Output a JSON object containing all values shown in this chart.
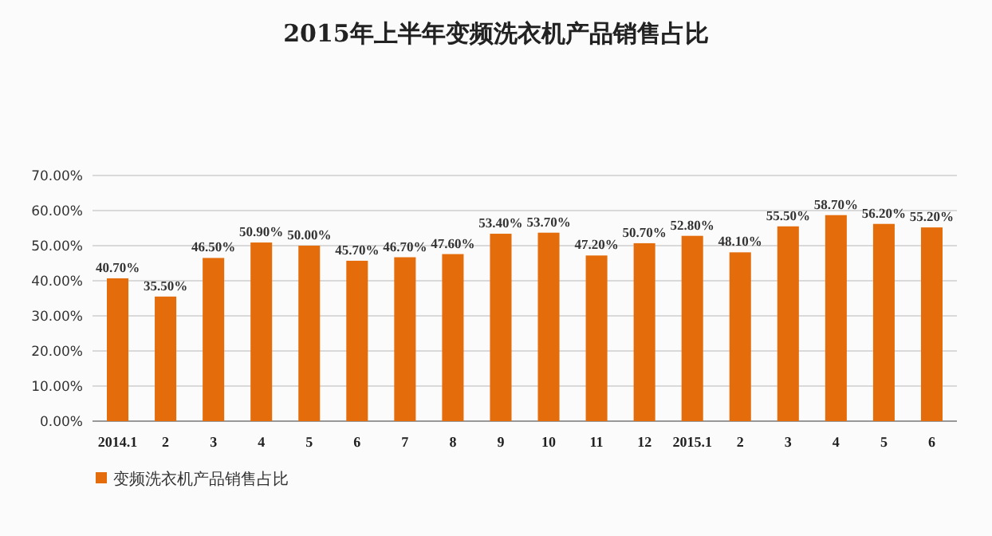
{
  "chart_data": {
    "type": "bar",
    "title": "2015年上半年变频洗衣机产品销售占比",
    "categories": [
      "2014.1",
      "2",
      "3",
      "4",
      "5",
      "6",
      "7",
      "8",
      "9",
      "10",
      "11",
      "12",
      "2015.1",
      "2",
      "3",
      "4",
      "5",
      "6"
    ],
    "series": [
      {
        "name": "变频洗衣机产品销售占比",
        "color": "#e46c0a",
        "values": [
          40.7,
          35.5,
          46.5,
          50.9,
          50.0,
          45.7,
          46.7,
          47.6,
          53.4,
          53.7,
          47.2,
          50.7,
          52.8,
          48.1,
          55.5,
          58.7,
          56.2,
          55.2
        ],
        "value_labels": [
          "40.70%",
          "35.50%",
          "46.50%",
          "50.90%",
          "50.00%",
          "45.70%",
          "46.70%",
          "47.60%",
          "53.40%",
          "53.70%",
          "47.20%",
          "50.70%",
          "52.80%",
          "48.10%",
          "55.50%",
          "58.70%",
          "56.20%",
          "55.20%"
        ]
      }
    ],
    "ylim": [
      0,
      70
    ],
    "yticks": [
      {
        "value": 0,
        "label": "0.00%"
      },
      {
        "value": 10,
        "label": "10.00%"
      },
      {
        "value": 20,
        "label": "20.00%"
      },
      {
        "value": 30,
        "label": "30.00%"
      },
      {
        "value": 40,
        "label": "40.00%"
      },
      {
        "value": 50,
        "label": "50.00%"
      },
      {
        "value": 60,
        "label": "60.00%"
      },
      {
        "value": 70,
        "label": "70.00%"
      }
    ],
    "grid": "y",
    "legend": "bottom left"
  }
}
